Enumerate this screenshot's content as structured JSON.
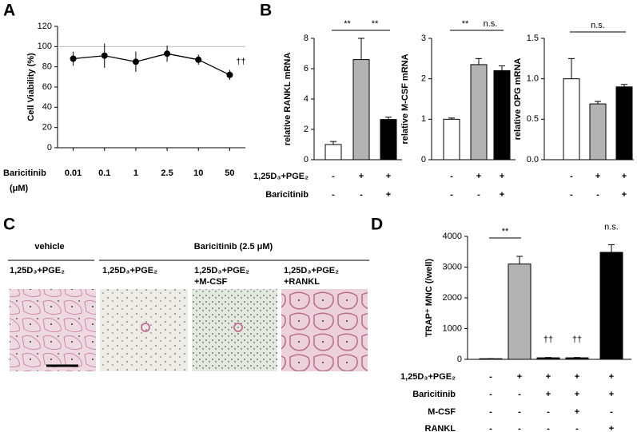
{
  "panel_labels": [
    "A",
    "B",
    "C",
    "D"
  ],
  "chart_data": [
    {
      "type": "line",
      "ylabel": "Cell Viability (%)",
      "xlabel": [
        "Baricitinib",
        "(μM)"
      ],
      "categories": [
        "0.01",
        "0.1",
        "1",
        "2.5",
        "10",
        "50"
      ],
      "values": [
        88,
        91,
        85,
        93,
        87,
        72
      ],
      "errors": [
        7,
        12,
        10,
        8,
        5,
        5
      ],
      "color": "#000000",
      "ylim": [
        0,
        120
      ],
      "yticks": [
        0,
        20,
        40,
        60,
        80,
        100,
        120
      ],
      "reference_line": 100,
      "annotations": [
        "††"
      ]
    },
    {
      "type": "bar",
      "ylabel": "relative RANKL mRNA",
      "values": [
        1,
        6.6,
        2.65
      ],
      "errors": [
        0.2,
        1.4,
        0.15
      ],
      "colors": [
        "#ffffff",
        "#b3b3b3",
        "#000000"
      ],
      "ylim": [
        0,
        8
      ],
      "yticks": [
        0,
        2,
        4,
        6,
        8
      ],
      "annotations": [
        "**",
        "**"
      ],
      "conditions": [
        {
          "name": "1,25D₃+PGE₂",
          "signs": [
            "-",
            "+",
            "+"
          ]
        },
        {
          "name": "Baricitinib",
          "signs": [
            "-",
            "-",
            "+"
          ]
        }
      ]
    },
    {
      "type": "bar",
      "ylabel": "relative M-CSF mRNA",
      "values": [
        1,
        2.35,
        2.2
      ],
      "errors": [
        0.03,
        0.15,
        0.12
      ],
      "colors": [
        "#ffffff",
        "#b3b3b3",
        "#000000"
      ],
      "ylim": [
        0,
        3
      ],
      "yticks": [
        0,
        1,
        2,
        3
      ],
      "annotations": [
        "**",
        "n.s."
      ],
      "conditions": [
        {
          "signs": [
            "-",
            "+",
            "+"
          ]
        },
        {
          "signs": [
            "-",
            "-",
            "+"
          ]
        }
      ]
    },
    {
      "type": "bar",
      "ylabel": "relative OPG mRNA",
      "values": [
        1,
        0.69,
        0.9
      ],
      "errors": [
        0.25,
        0.03,
        0.03
      ],
      "colors": [
        "#ffffff",
        "#b3b3b3",
        "#000000"
      ],
      "ylim": [
        0,
        1.5
      ],
      "yticks": [
        {
          "value": 0,
          "label": "0.0"
        },
        {
          "value": 0.5,
          "label": "0.5"
        },
        {
          "value": 1,
          "label": "1.0"
        },
        {
          "value": 1.5,
          "label": "1.5"
        }
      ],
      "annotations": [
        "n.s."
      ],
      "conditions": [
        {
          "signs": [
            "-",
            "+",
            "+"
          ]
        },
        {
          "signs": [
            "-",
            "-",
            "+"
          ]
        }
      ]
    },
    {
      "type": "bar",
      "ylabel": "TRAP⁺ MNC (/well)",
      "values": [
        20,
        3100,
        50,
        50,
        3480
      ],
      "errors": [
        0,
        250,
        10,
        10,
        250
      ],
      "colors": [
        "#ffffff",
        "#b3b3b3",
        "#000000",
        "#000000",
        "#000000"
      ],
      "ylim": [
        0,
        4000
      ],
      "yticks": [
        0,
        1000,
        2000,
        3000,
        4000
      ],
      "annotations": [
        "**",
        "††",
        "††",
        "n.s."
      ],
      "conditions": [
        {
          "name": "1,25D₃+PGE₂",
          "signs": [
            "-",
            "+",
            "+",
            "+",
            "+"
          ]
        },
        {
          "name": "Baricitinib",
          "signs": [
            "-",
            "-",
            "+",
            "+",
            "+"
          ]
        },
        {
          "name": "M-CSF",
          "signs": [
            "-",
            "-",
            "-",
            "+",
            "-"
          ]
        },
        {
          "name": "RANKL",
          "signs": [
            "-",
            "-",
            "-",
            "-",
            "+"
          ]
        }
      ]
    }
  ],
  "panel_c": {
    "group_labels": [
      "vehicle",
      "Baricitinib (2.5 μM)"
    ],
    "column_labels": [
      [
        "1,25D₃+PGE₂"
      ],
      [
        "1,25D₃+PGE₂"
      ],
      [
        "1,25D₃+PGE₂",
        "+M-CSF"
      ],
      [
        "1,25D₃+PGE₂",
        "+RANKL"
      ]
    ]
  }
}
